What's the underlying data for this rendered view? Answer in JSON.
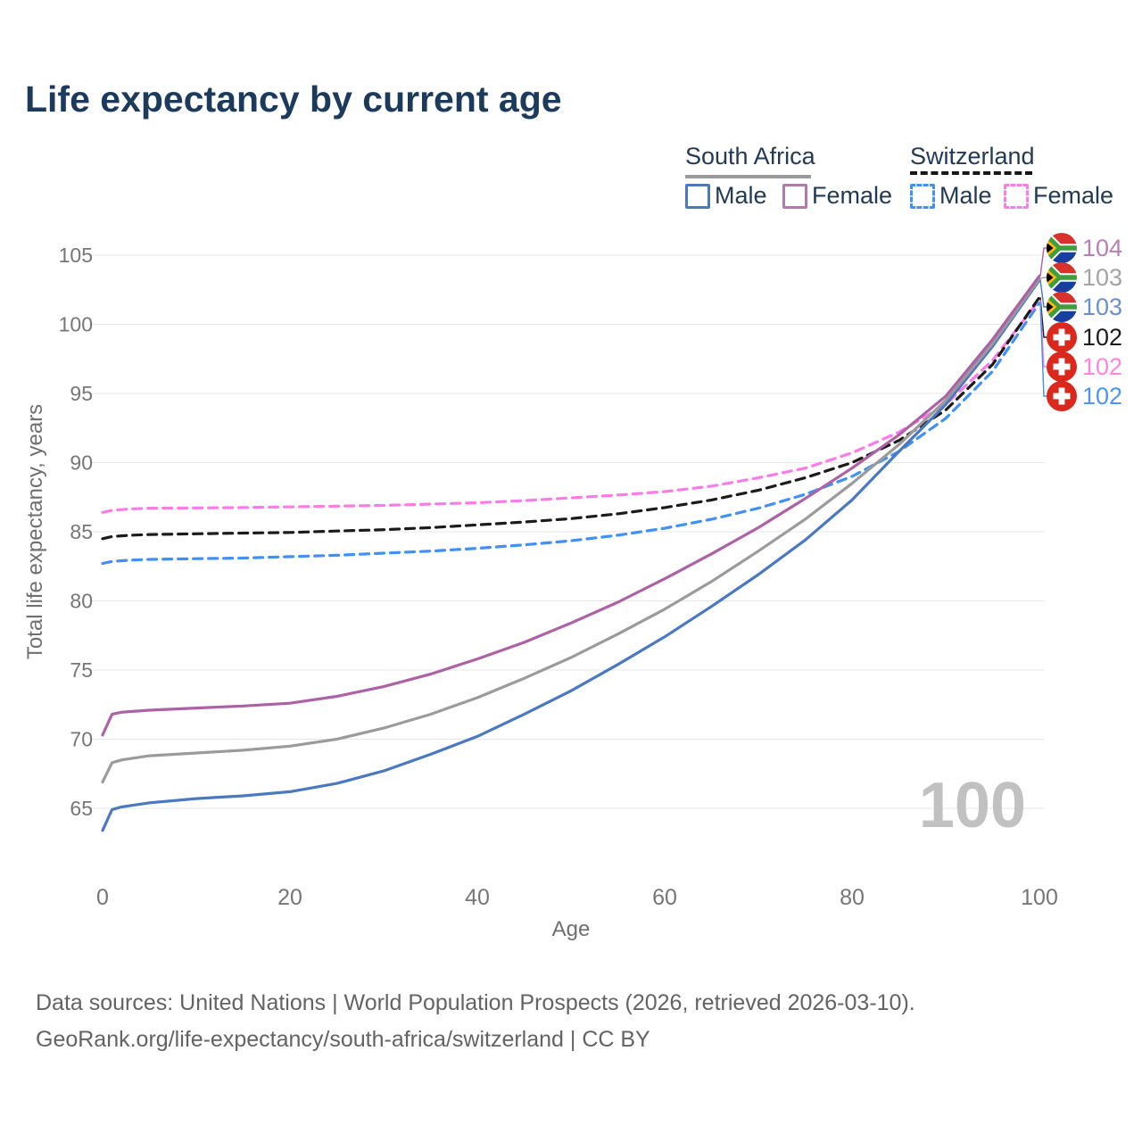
{
  "title": "Life expectancy by current age",
  "legend": {
    "groups": [
      {
        "country": "South Africa",
        "line_style": "solid",
        "line_color": "#9a9a9a",
        "items": [
          {
            "label": "Male",
            "color": "#4a79c0"
          },
          {
            "label": "Female",
            "color": "#b279ae"
          }
        ]
      },
      {
        "country": "Switzerland",
        "line_style": "dashed",
        "line_color": "#161616",
        "items": [
          {
            "label": "Male",
            "color": "#4090f5"
          },
          {
            "label": "Female",
            "color": "#fb7ce8"
          }
        ]
      }
    ]
  },
  "watermark": "100",
  "footer": {
    "line1": "Data sources: United Nations | World Population Prospects (2026, retrieved 2026-03-10).",
    "line2": "GeoRank.org/life-expectancy/south-africa/switzerland | CC BY"
  },
  "chart_data": {
    "type": "line",
    "title": "Life expectancy by current age",
    "xlabel": "Age",
    "ylabel": "Total life expectancy, years",
    "x_ticks": [
      0,
      20,
      40,
      60,
      80,
      100
    ],
    "y_ticks": [
      65,
      70,
      75,
      80,
      85,
      90,
      95,
      100,
      105
    ],
    "xlim": [
      0,
      100
    ],
    "ylim": [
      63,
      106
    ],
    "grid": true,
    "legend_position": "top-right",
    "ages": [
      0,
      1,
      2,
      3,
      5,
      10,
      15,
      20,
      25,
      30,
      35,
      40,
      45,
      50,
      55,
      60,
      65,
      70,
      75,
      80,
      85,
      90,
      95,
      100
    ],
    "series": [
      {
        "name": "Switzerland Male",
        "country": "Switzerland",
        "sex": "Male",
        "color": "#4090f5",
        "dash": "dashed",
        "values": [
          82.7,
          82.85,
          82.9,
          82.95,
          83.0,
          83.05,
          83.1,
          83.2,
          83.3,
          83.45,
          83.6,
          83.8,
          84.05,
          84.35,
          84.75,
          85.25,
          85.9,
          86.7,
          87.7,
          89.0,
          90.8,
          93.2,
          96.6,
          101.55
        ]
      },
      {
        "name": "Switzerland Female",
        "country": "Switzerland",
        "sex": "Female",
        "color": "#fb7ce8",
        "dash": "dashed",
        "values": [
          86.4,
          86.55,
          86.6,
          86.65,
          86.7,
          86.72,
          86.75,
          86.8,
          86.85,
          86.9,
          87.0,
          87.1,
          87.25,
          87.45,
          87.65,
          87.9,
          88.3,
          88.9,
          89.6,
          90.7,
          92.2,
          94.2,
          97.4,
          101.75
        ]
      },
      {
        "name": "Switzerland Both sexes",
        "country": "Switzerland",
        "sex": "Both",
        "color": "#1b1b1b",
        "dash": "dashed",
        "values": [
          84.5,
          84.65,
          84.7,
          84.75,
          84.8,
          84.85,
          84.9,
          84.95,
          85.05,
          85.15,
          85.3,
          85.5,
          85.7,
          85.95,
          86.3,
          86.75,
          87.3,
          88.0,
          88.9,
          90.0,
          91.6,
          93.8,
          97.1,
          101.95
        ]
      },
      {
        "name": "South Africa Male",
        "country": "South Africa",
        "sex": "Male",
        "color": "#4a79c0",
        "dash": "solid",
        "values": [
          63.4,
          64.9,
          65.1,
          65.2,
          65.4,
          65.7,
          65.9,
          66.2,
          66.8,
          67.7,
          68.9,
          70.2,
          71.8,
          73.5,
          75.4,
          77.4,
          79.6,
          81.9,
          84.4,
          87.3,
          90.8,
          94.2,
          98.4,
          103.2
        ]
      },
      {
        "name": "South Africa Both sexes",
        "country": "South Africa",
        "sex": "Both",
        "color": "#9b9b9b",
        "dash": "solid",
        "values": [
          66.9,
          68.3,
          68.5,
          68.6,
          68.8,
          69.0,
          69.2,
          69.5,
          70.0,
          70.8,
          71.8,
          73.0,
          74.4,
          75.9,
          77.6,
          79.4,
          81.4,
          83.6,
          85.9,
          88.5,
          91.3,
          94.5,
          98.6,
          103.3
        ]
      },
      {
        "name": "South Africa Female",
        "country": "South Africa",
        "sex": "Female",
        "color": "#ac62a4",
        "dash": "solid",
        "values": [
          70.3,
          71.8,
          71.95,
          72.0,
          72.1,
          72.25,
          72.4,
          72.6,
          73.1,
          73.8,
          74.7,
          75.8,
          77.0,
          78.4,
          79.9,
          81.6,
          83.4,
          85.3,
          87.4,
          89.6,
          92.0,
          94.8,
          98.9,
          103.5
        ]
      }
    ],
    "end_labels": [
      {
        "value": "104",
        "flag": "south-africa",
        "color": "#b77fb7",
        "series_index": 5
      },
      {
        "value": "103",
        "flag": "south-africa",
        "color": "#a3a3a3",
        "series_index": 4
      },
      {
        "value": "103",
        "flag": "south-africa",
        "color": "#6b8fc9",
        "series_index": 3
      },
      {
        "value": "102",
        "flag": "switzerland",
        "color": "#1c1c1c",
        "series_index": 2
      },
      {
        "value": "102",
        "flag": "switzerland",
        "color": "#ff85e0",
        "series_index": 1
      },
      {
        "value": "102",
        "flag": "switzerland",
        "color": "#4d94f7",
        "series_index": 0
      }
    ]
  }
}
